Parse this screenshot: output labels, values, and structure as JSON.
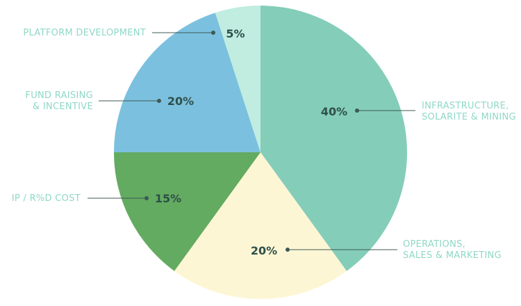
{
  "chart_data": {
    "type": "pie",
    "title": "",
    "slices": [
      {
        "name": "INFRASTRUCTURE,\nSOLARITE & MINING",
        "label_lines": [
          "INFRASTRUCTURE,",
          "SOLARITE & MINING"
        ],
        "value": 40,
        "value_label": "40%",
        "color": "#84cdb9"
      },
      {
        "name": "OPERATIONS,\nSALES & MARKETING",
        "label_lines": [
          "OPERATIONS,",
          "SALES & MARKETING"
        ],
        "value": 20,
        "value_label": "20%",
        "color": "#fdf6d4"
      },
      {
        "name": "IP / R%D COST",
        "label_lines": [
          "IP / R%D COST"
        ],
        "value": 15,
        "value_label": "15%",
        "color": "#63ab60"
      },
      {
        "name": "FUND RAISING\n& INCENTIVE",
        "label_lines": [
          "FUND RAISING",
          "& INCENTIVE"
        ],
        "value": 20,
        "value_label": "20%",
        "color": "#7bc1df"
      },
      {
        "name": "PLATFORM DEVELOPMENT",
        "label_lines": [
          "PLATFORM DEVELOPMENT"
        ],
        "value": 5,
        "value_label": "5%",
        "color": "#c0ede0"
      }
    ],
    "start": "12 o'clock",
    "direction": "clockwise",
    "legend": "none"
  }
}
